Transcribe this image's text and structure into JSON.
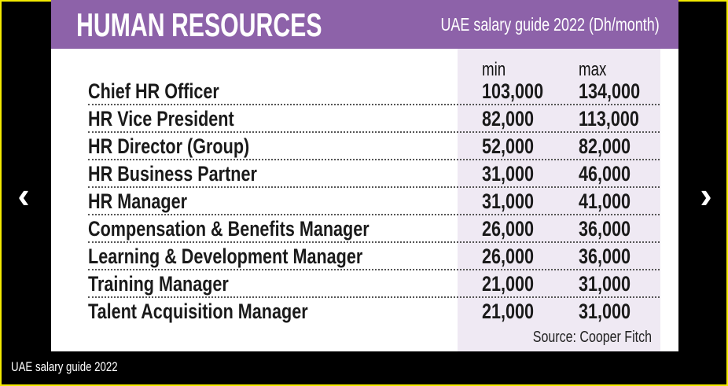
{
  "header": {
    "title": "HUMAN RESOURCES",
    "subtitle": "UAE salary guide 2022 (Dh/month)"
  },
  "columns": {
    "min": "min",
    "max": "max"
  },
  "rows": [
    {
      "title": "Chief HR Officer",
      "min": "103,000",
      "max": "134,000"
    },
    {
      "title": "HR Vice President",
      "min": "82,000",
      "max": "113,000"
    },
    {
      "title": "HR Director (Group)",
      "min": "52,000",
      "max": "82,000"
    },
    {
      "title": "HR Business Partner",
      "min": "31,000",
      "max": "46,000"
    },
    {
      "title": "HR Manager",
      "min": "31,000",
      "max": "41,000"
    },
    {
      "title": "Compensation & Benefits Manager",
      "min": "26,000",
      "max": "36,000"
    },
    {
      "title": "Learning & Development Manager",
      "min": "26,000",
      "max": "36,000"
    },
    {
      "title": "Training Manager",
      "min": "21,000",
      "max": "31,000"
    },
    {
      "title": "Talent Acquisition Manager",
      "min": "21,000",
      "max": "31,000"
    }
  ],
  "source": "Source: Cooper Fitch",
  "caption": "UAE salary guide 2022",
  "nav": {
    "prev": "‹",
    "next": "›"
  }
}
